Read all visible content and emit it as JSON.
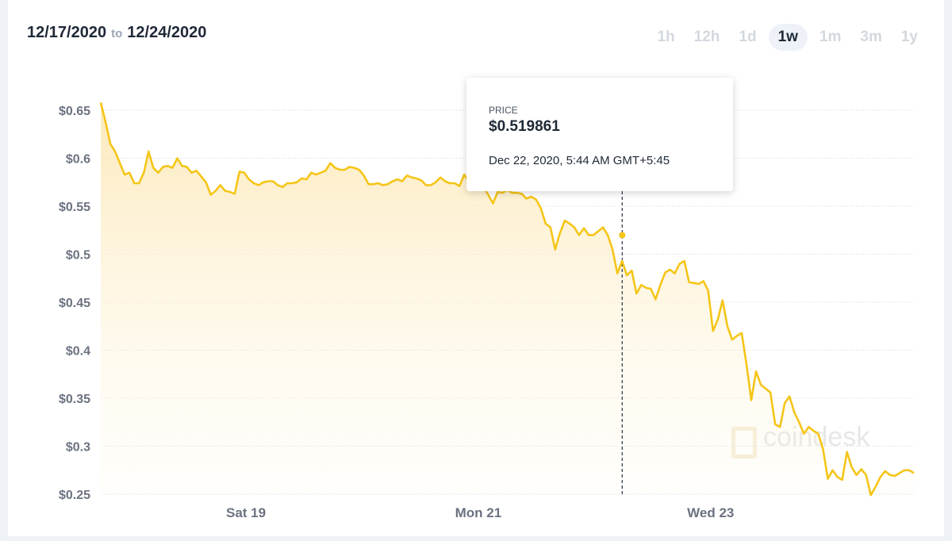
{
  "header": {
    "date_from": "12/17/2020",
    "to_label": "to",
    "date_to": "12/24/2020"
  },
  "periods": [
    {
      "label": "1h",
      "active": false
    },
    {
      "label": "12h",
      "active": false
    },
    {
      "label": "1d",
      "active": false
    },
    {
      "label": "1w",
      "active": true
    },
    {
      "label": "1m",
      "active": false
    },
    {
      "label": "3m",
      "active": false
    },
    {
      "label": "1y",
      "active": false
    }
  ],
  "tooltip": {
    "label": "PRICE",
    "price": "$0.519861",
    "timestamp": "Dec 22, 2020, 5:44 AM GMT+5:45"
  },
  "watermark": "coindesk",
  "colors": {
    "line": "#f5c518",
    "grid": "#e5e7eb",
    "axis_text": "#6b7280"
  },
  "chart_data": {
    "type": "line",
    "x_start": "2020-12-17 18:00",
    "x_end": "2020-12-24 18:00",
    "ylim": [
      0.25,
      0.65
    ],
    "ytick_labels": [
      "$0.65",
      "$0.6",
      "$0.55",
      "$0.5",
      "$0.45",
      "$0.4",
      "$0.35",
      "$0.3",
      "$0.25"
    ],
    "ytick_values": [
      0.65,
      0.6,
      0.55,
      0.5,
      0.45,
      0.4,
      0.35,
      0.3,
      0.25
    ],
    "xtick_labels": [
      "Sat 19",
      "Mon 21",
      "Wed 23"
    ],
    "xtick_values": [
      "2020-12-19",
      "2020-12-21",
      "2020-12-23"
    ],
    "hover_x": "2020-12-22 05:44",
    "hover_y": 0.519861,
    "series": [
      {
        "values": [
          0.658,
          0.638,
          0.615,
          0.607,
          0.595,
          0.583,
          0.585,
          0.574,
          0.574,
          0.585,
          0.607,
          0.59,
          0.585,
          0.591,
          0.592,
          0.59,
          0.6,
          0.592,
          0.591,
          0.585,
          0.587,
          0.581,
          0.575,
          0.562,
          0.566,
          0.572,
          0.566,
          0.565,
          0.563,
          0.586,
          0.585,
          0.578,
          0.574,
          0.572,
          0.575,
          0.576,
          0.576,
          0.572,
          0.57,
          0.574,
          0.574,
          0.575,
          0.579,
          0.578,
          0.585,
          0.583,
          0.585,
          0.587,
          0.595,
          0.59,
          0.588,
          0.588,
          0.591,
          0.59,
          0.588,
          0.582,
          0.573,
          0.573,
          0.574,
          0.572,
          0.573,
          0.576,
          0.578,
          0.576,
          0.582,
          0.58,
          0.579,
          0.577,
          0.572,
          0.572,
          0.575,
          0.58,
          0.576,
          0.574,
          0.574,
          0.571,
          0.583,
          0.575,
          0.574,
          0.573,
          0.57,
          0.562,
          0.553,
          0.565,
          0.564,
          0.567,
          0.564,
          0.564,
          0.563,
          0.558,
          0.56,
          0.557,
          0.548,
          0.532,
          0.528,
          0.505,
          0.522,
          0.535,
          0.532,
          0.528,
          0.52,
          0.527,
          0.52,
          0.52,
          0.524,
          0.528,
          0.519861,
          0.505,
          0.48,
          0.493,
          0.478,
          0.483,
          0.459,
          0.468,
          0.465,
          0.464,
          0.453,
          0.468,
          0.481,
          0.484,
          0.48,
          0.49,
          0.493,
          0.471,
          0.47,
          0.469,
          0.472,
          0.462,
          0.42,
          0.432,
          0.452,
          0.425,
          0.411,
          0.415,
          0.418,
          0.385,
          0.348,
          0.378,
          0.364,
          0.36,
          0.356,
          0.323,
          0.32,
          0.345,
          0.352,
          0.335,
          0.325,
          0.313,
          0.32,
          0.316,
          0.313,
          0.297,
          0.266,
          0.275,
          0.268,
          0.265,
          0.294,
          0.278,
          0.27,
          0.276,
          0.27,
          0.249,
          0.258,
          0.268,
          0.274,
          0.27,
          0.269,
          0.272,
          0.275,
          0.275,
          0.272
        ]
      }
    ]
  }
}
